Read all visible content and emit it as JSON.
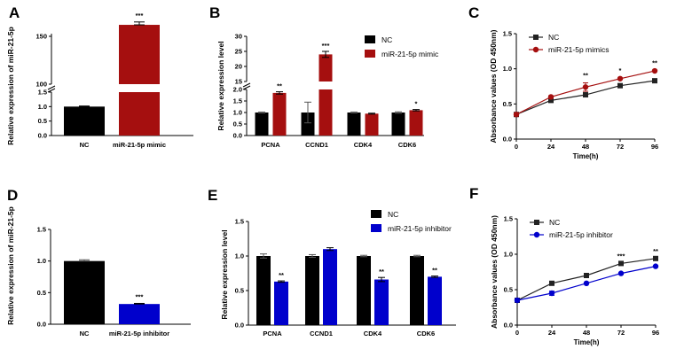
{
  "colors": {
    "black": "#000000",
    "red": "#a50f0f",
    "blue": "#0000cc",
    "line_black": "#222222"
  },
  "chart_data": [
    {
      "panel": "A",
      "type": "bar",
      "ylabel": "Relative expression of miR-21-5p",
      "categories": [
        "NC",
        "miR-21-5p mimic"
      ],
      "values": [
        1.0,
        162
      ],
      "errors": [
        0.02,
        3
      ],
      "bar_colors": [
        "#000000",
        "#a50f0f"
      ],
      "sig": [
        "",
        "***"
      ],
      "axis_break": {
        "lower": [
          0,
          1.5
        ],
        "upper": [
          100,
          150
        ]
      },
      "yticks_lower": [
        "0.0",
        "0.5",
        "1.0",
        "1.5"
      ],
      "yticks_upper": [
        "100",
        "150"
      ]
    },
    {
      "panel": "B",
      "type": "bar",
      "ylabel": "Relative expression level",
      "categories": [
        "PCNA",
        "CCND1",
        "CDK4",
        "CDK6"
      ],
      "series": [
        {
          "name": "NC",
          "values": [
            1.0,
            1.0,
            1.0,
            1.0
          ],
          "errors": [
            0.02,
            0.45,
            0.02,
            0.03
          ]
        },
        {
          "name": "miR-21-5p mimic",
          "values": [
            1.85,
            24.0,
            0.95,
            1.1
          ],
          "errors": [
            0.05,
            1.0,
            0.02,
            0.03
          ]
        }
      ],
      "series_colors": [
        "#000000",
        "#a50f0f"
      ],
      "sig": [
        "**",
        "***",
        "",
        "*"
      ],
      "axis_break": {
        "lower": [
          0,
          2.0
        ],
        "upper": [
          15,
          30
        ]
      },
      "yticks_lower": [
        "0.0",
        "0.5",
        "1.0",
        "1.5",
        "2.0"
      ],
      "yticks_upper": [
        "15",
        "20",
        "25",
        "30"
      ]
    },
    {
      "panel": "C",
      "type": "line",
      "ylabel": "Absorbance values (OD 450nm)",
      "xlabel": "Time(h)",
      "x": [
        0,
        24,
        48,
        72,
        96
      ],
      "series": [
        {
          "name": "NC",
          "values": [
            0.35,
            0.55,
            0.63,
            0.76,
            0.83
          ],
          "errors": [
            0.02,
            0.01,
            0.01,
            0.01,
            0.01
          ]
        },
        {
          "name": "miR-21-5p mimics",
          "values": [
            0.35,
            0.6,
            0.74,
            0.86,
            0.97
          ],
          "errors": [
            0.02,
            0.01,
            0.06,
            0.01,
            0.01
          ]
        }
      ],
      "series_colors": [
        "#222222",
        "#a50f0f"
      ],
      "sig": [
        "",
        "",
        "**",
        "*",
        "**"
      ],
      "ylim": [
        0,
        1.5
      ],
      "yticks": [
        "0.0",
        "0.5",
        "1.0",
        "1.5"
      ],
      "xticks": [
        "0",
        "24",
        "48",
        "72",
        "96"
      ]
    },
    {
      "panel": "D",
      "type": "bar",
      "ylabel": "Relative expression of miR-21-5p",
      "categories": [
        "NC",
        "miR-21-5p inhibitor"
      ],
      "values": [
        1.0,
        0.32
      ],
      "errors": [
        0.02,
        0.01
      ],
      "bar_colors": [
        "#000000",
        "#0000cc"
      ],
      "sig": [
        "",
        "***"
      ],
      "ylim": [
        0,
        1.5
      ],
      "yticks": [
        "0.0",
        "0.5",
        "1.0",
        "1.5"
      ]
    },
    {
      "panel": "E",
      "type": "bar",
      "ylabel": "Relative expression level",
      "categories": [
        "PCNA",
        "CCND1",
        "CDK4",
        "CDK6"
      ],
      "series": [
        {
          "name": "NC",
          "values": [
            1.0,
            1.0,
            1.0,
            1.0
          ],
          "errors": [
            0.03,
            0.02,
            0.01,
            0.01
          ]
        },
        {
          "name": "miR-21-5p inhibitor",
          "values": [
            0.63,
            1.1,
            0.66,
            0.7
          ],
          "errors": [
            0.01,
            0.02,
            0.03,
            0.01
          ]
        }
      ],
      "series_colors": [
        "#000000",
        "#0000cc"
      ],
      "sig": [
        "**",
        "",
        "**",
        "**"
      ],
      "ylim": [
        0,
        1.5
      ],
      "yticks": [
        "0.0",
        "0.5",
        "1.0",
        "1.5"
      ]
    },
    {
      "panel": "F",
      "type": "line",
      "ylabel": "Absorbance values (OD 450nm)",
      "xlabel": "Time(h)",
      "x": [
        0,
        24,
        48,
        72,
        96
      ],
      "series": [
        {
          "name": "NC",
          "values": [
            0.35,
            0.59,
            0.7,
            0.87,
            0.94
          ],
          "errors": [
            0.01,
            0.01,
            0.01,
            0.01,
            0.01
          ]
        },
        {
          "name": "miR-21-5p inhibitor",
          "values": [
            0.35,
            0.45,
            0.59,
            0.73,
            0.83
          ],
          "errors": [
            0.02,
            0.03,
            0.01,
            0.01,
            0.01
          ]
        }
      ],
      "series_colors": [
        "#222222",
        "#0000cc"
      ],
      "sig": [
        "",
        "",
        "",
        "***",
        "**"
      ],
      "ylim": [
        0,
        1.5
      ],
      "yticks": [
        "0.0",
        "0.5",
        "1.0",
        "1.5"
      ],
      "xticks": [
        "0",
        "24",
        "48",
        "72",
        "96"
      ]
    }
  ]
}
